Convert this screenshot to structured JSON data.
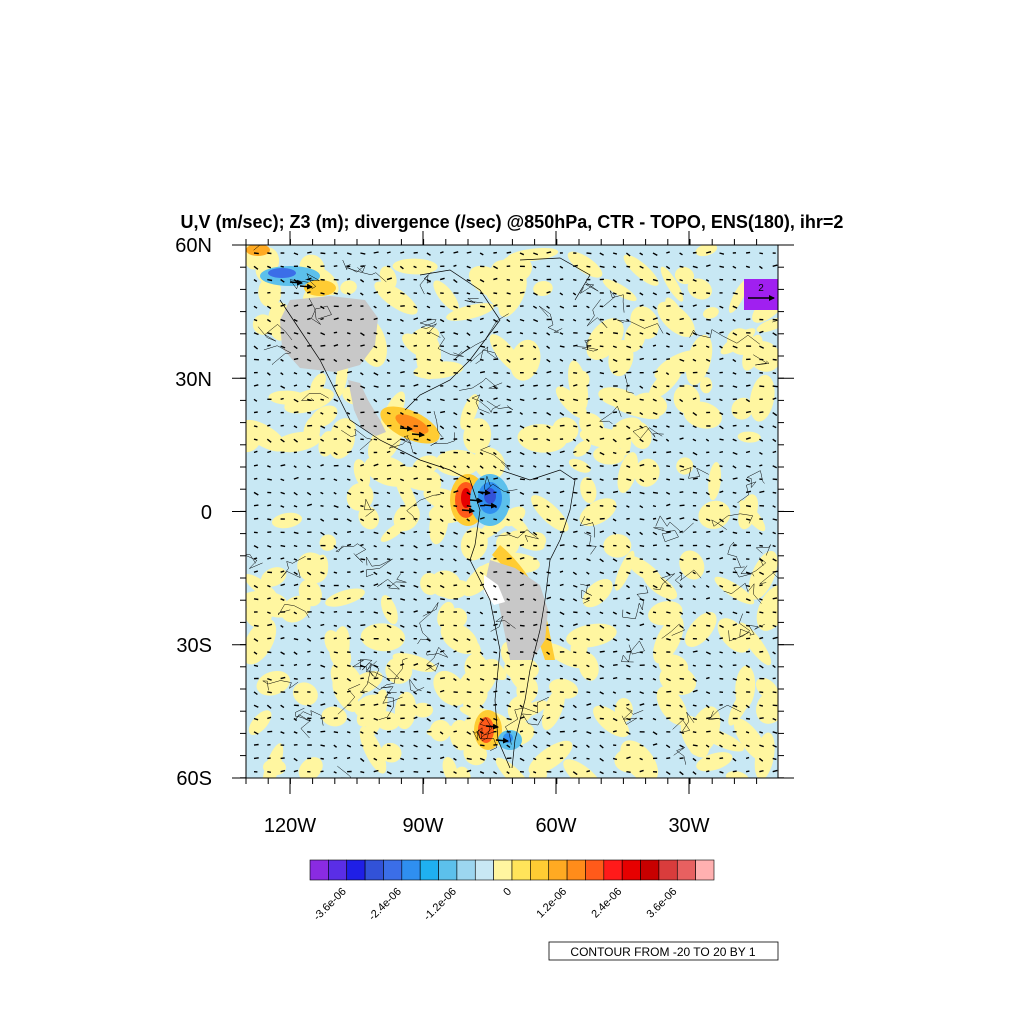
{
  "title": "U,V (m/sec); Z3 (m); divergence (/sec) @850hPa, CTR - TOPO, ENS(180), ihr=2",
  "lat_ticks": [
    "60N",
    "30N",
    "0",
    "30S",
    "60S"
  ],
  "lon_ticks": [
    "120W",
    "90W",
    "60W",
    "30W"
  ],
  "colorbar": {
    "labels": [
      "-3.6e-06",
      "-2.4e-06",
      "-1.2e-06",
      "0",
      "1.2e-06",
      "2.4e-06",
      "3.6e-06"
    ],
    "colors": [
      "#8a2be2",
      "#5a2ee6",
      "#1f1fe6",
      "#3252d8",
      "#3b6ee8",
      "#2f8ff0",
      "#1fb0f0",
      "#5cc0ec",
      "#9cd6f0",
      "#c8e8f4",
      "#fff6a0",
      "#ffe45a",
      "#ffcc33",
      "#ffaa22",
      "#ff8c1a",
      "#ff5a1a",
      "#ff1a1a",
      "#e60000",
      "#c80000",
      "#d93c3c",
      "#e86060",
      "#ffb0b0"
    ]
  },
  "contour_info": "CONTOUR FROM -20 TO 20 BY 1",
  "reference_vector": {
    "label": "2",
    "color": "#a020f0"
  },
  "colors": {
    "negative_background": "#c8e8f4",
    "positive_background": "#fff6a0",
    "masked_topography": "#c8c8c8"
  }
}
